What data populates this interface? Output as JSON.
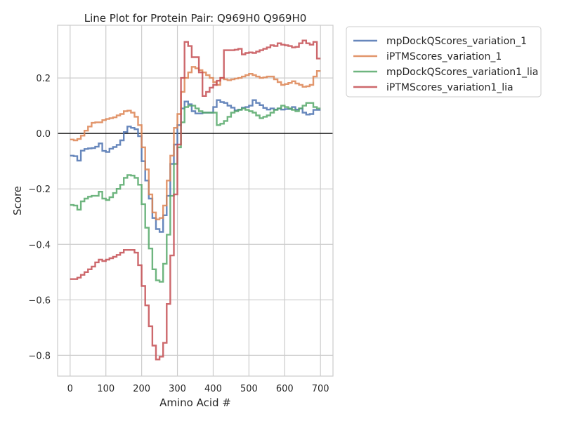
{
  "chart_data": {
    "type": "line",
    "title": "Line Plot for Protein Pair: Q969H0 Q969H0",
    "xlabel": "Amino Acid #",
    "ylabel": "Score",
    "xlim": [
      -35,
      735
    ],
    "ylim": [
      -0.875,
      0.39
    ],
    "xticks": [
      0,
      100,
      200,
      300,
      400,
      500,
      600,
      700
    ],
    "yticks": [
      -0.8,
      -0.6,
      -0.4,
      -0.2,
      0.0,
      0.2
    ],
    "xtick_labels": [
      "0",
      "100",
      "200",
      "300",
      "400",
      "500",
      "600",
      "700"
    ],
    "ytick_labels": [
      "−0.8",
      "−0.6",
      "−0.4",
      "−0.2",
      "0.0",
      "0.2"
    ],
    "grid": true,
    "zero_line": true,
    "legend_placement": "outside right, top",
    "series": [
      {
        "name": "mpDockQScores_variation_1",
        "color": "#4c72b0",
        "points": [
          [
            0,
            -0.08
          ],
          [
            10,
            -0.082
          ],
          [
            20,
            -0.098
          ],
          [
            30,
            -0.062
          ],
          [
            40,
            -0.056
          ],
          [
            50,
            -0.054
          ],
          [
            60,
            -0.053
          ],
          [
            70,
            -0.048
          ],
          [
            80,
            -0.036
          ],
          [
            90,
            -0.063
          ],
          [
            100,
            -0.067
          ],
          [
            110,
            -0.055
          ],
          [
            120,
            -0.049
          ],
          [
            130,
            -0.041
          ],
          [
            140,
            -0.025
          ],
          [
            150,
            0.005
          ],
          [
            160,
            0.025
          ],
          [
            170,
            0.02
          ],
          [
            180,
            0.015
          ],
          [
            190,
            -0.01
          ],
          [
            200,
            -0.1
          ],
          [
            210,
            -0.17
          ],
          [
            220,
            -0.235
          ],
          [
            230,
            -0.305
          ],
          [
            240,
            -0.345
          ],
          [
            250,
            -0.355
          ],
          [
            260,
            -0.295
          ],
          [
            270,
            -0.225
          ],
          [
            280,
            -0.11
          ],
          [
            290,
            -0.04
          ],
          [
            300,
            0.03
          ],
          [
            310,
            0.09
          ],
          [
            320,
            0.115
          ],
          [
            330,
            0.105
          ],
          [
            340,
            0.08
          ],
          [
            350,
            0.072
          ],
          [
            360,
            0.072
          ],
          [
            370,
            0.075
          ],
          [
            380,
            0.075
          ],
          [
            390,
            0.075
          ],
          [
            400,
            0.095
          ],
          [
            410,
            0.12
          ],
          [
            420,
            0.113
          ],
          [
            430,
            0.11
          ],
          [
            440,
            0.1
          ],
          [
            450,
            0.093
          ],
          [
            460,
            0.083
          ],
          [
            470,
            0.086
          ],
          [
            480,
            0.093
          ],
          [
            490,
            0.095
          ],
          [
            500,
            0.1
          ],
          [
            510,
            0.12
          ],
          [
            520,
            0.11
          ],
          [
            530,
            0.102
          ],
          [
            540,
            0.092
          ],
          [
            550,
            0.086
          ],
          [
            560,
            0.09
          ],
          [
            570,
            0.086
          ],
          [
            580,
            0.09
          ],
          [
            590,
            0.086
          ],
          [
            600,
            0.088
          ],
          [
            610,
            0.088
          ],
          [
            620,
            0.095
          ],
          [
            630,
            0.086
          ],
          [
            640,
            0.09
          ],
          [
            650,
            0.075
          ],
          [
            660,
            0.068
          ],
          [
            670,
            0.07
          ],
          [
            680,
            0.085
          ],
          [
            690,
            0.085
          ]
        ]
      },
      {
        "name": "iPTMScores_variation_1",
        "color": "#dd8452",
        "points": [
          [
            0,
            -0.022
          ],
          [
            10,
            -0.025
          ],
          [
            20,
            -0.02
          ],
          [
            30,
            -0.008
          ],
          [
            40,
            0.01
          ],
          [
            50,
            0.025
          ],
          [
            60,
            0.038
          ],
          [
            70,
            0.04
          ],
          [
            80,
            0.04
          ],
          [
            90,
            0.048
          ],
          [
            100,
            0.052
          ],
          [
            110,
            0.055
          ],
          [
            120,
            0.058
          ],
          [
            130,
            0.065
          ],
          [
            140,
            0.07
          ],
          [
            150,
            0.08
          ],
          [
            160,
            0.082
          ],
          [
            170,
            0.075
          ],
          [
            180,
            0.06
          ],
          [
            190,
            0.03
          ],
          [
            200,
            -0.05
          ],
          [
            210,
            -0.13
          ],
          [
            220,
            -0.22
          ],
          [
            230,
            -0.285
          ],
          [
            240,
            -0.31
          ],
          [
            250,
            -0.305
          ],
          [
            260,
            -0.26
          ],
          [
            270,
            -0.17
          ],
          [
            280,
            -0.08
          ],
          [
            290,
            0.02
          ],
          [
            300,
            0.07
          ],
          [
            310,
            0.15
          ],
          [
            320,
            0.2
          ],
          [
            330,
            0.22
          ],
          [
            340,
            0.24
          ],
          [
            350,
            0.235
          ],
          [
            360,
            0.228
          ],
          [
            370,
            0.22
          ],
          [
            380,
            0.21
          ],
          [
            390,
            0.2
          ],
          [
            400,
            0.185
          ],
          [
            410,
            0.175
          ],
          [
            420,
            0.2
          ],
          [
            430,
            0.195
          ],
          [
            440,
            0.192
          ],
          [
            450,
            0.195
          ],
          [
            460,
            0.198
          ],
          [
            470,
            0.2
          ],
          [
            480,
            0.205
          ],
          [
            490,
            0.21
          ],
          [
            500,
            0.215
          ],
          [
            510,
            0.21
          ],
          [
            520,
            0.205
          ],
          [
            530,
            0.2
          ],
          [
            540,
            0.202
          ],
          [
            550,
            0.205
          ],
          [
            560,
            0.205
          ],
          [
            570,
            0.195
          ],
          [
            580,
            0.185
          ],
          [
            590,
            0.175
          ],
          [
            600,
            0.178
          ],
          [
            610,
            0.182
          ],
          [
            620,
            0.188
          ],
          [
            630,
            0.18
          ],
          [
            640,
            0.175
          ],
          [
            650,
            0.168
          ],
          [
            660,
            0.17
          ],
          [
            670,
            0.175
          ],
          [
            680,
            0.205
          ],
          [
            690,
            0.225
          ]
        ]
      },
      {
        "name": "mpDockQScores_variation1_lia",
        "color": "#55a868",
        "points": [
          [
            0,
            -0.258
          ],
          [
            10,
            -0.26
          ],
          [
            20,
            -0.275
          ],
          [
            30,
            -0.245
          ],
          [
            40,
            -0.235
          ],
          [
            50,
            -0.228
          ],
          [
            60,
            -0.225
          ],
          [
            70,
            -0.225
          ],
          [
            80,
            -0.21
          ],
          [
            90,
            -0.235
          ],
          [
            100,
            -0.24
          ],
          [
            110,
            -0.23
          ],
          [
            120,
            -0.215
          ],
          [
            130,
            -0.2
          ],
          [
            140,
            -0.185
          ],
          [
            150,
            -0.16
          ],
          [
            160,
            -0.15
          ],
          [
            170,
            -0.152
          ],
          [
            180,
            -0.16
          ],
          [
            190,
            -0.185
          ],
          [
            200,
            -0.255
          ],
          [
            210,
            -0.34
          ],
          [
            220,
            -0.415
          ],
          [
            230,
            -0.49
          ],
          [
            240,
            -0.53
          ],
          [
            250,
            -0.535
          ],
          [
            260,
            -0.47
          ],
          [
            270,
            -0.365
          ],
          [
            280,
            -0.225
          ],
          [
            290,
            -0.11
          ],
          [
            300,
            -0.05
          ],
          [
            310,
            0.04
          ],
          [
            320,
            0.095
          ],
          [
            330,
            0.1
          ],
          [
            340,
            0.1
          ],
          [
            350,
            0.09
          ],
          [
            360,
            0.08
          ],
          [
            370,
            0.075
          ],
          [
            380,
            0.075
          ],
          [
            390,
            0.075
          ],
          [
            400,
            0.075
          ],
          [
            410,
            0.03
          ],
          [
            420,
            0.035
          ],
          [
            430,
            0.045
          ],
          [
            440,
            0.06
          ],
          [
            450,
            0.075
          ],
          [
            460,
            0.08
          ],
          [
            470,
            0.085
          ],
          [
            480,
            0.09
          ],
          [
            490,
            0.085
          ],
          [
            500,
            0.08
          ],
          [
            510,
            0.075
          ],
          [
            520,
            0.065
          ],
          [
            530,
            0.055
          ],
          [
            540,
            0.06
          ],
          [
            550,
            0.065
          ],
          [
            560,
            0.075
          ],
          [
            570,
            0.085
          ],
          [
            580,
            0.09
          ],
          [
            590,
            0.1
          ],
          [
            600,
            0.095
          ],
          [
            610,
            0.09
          ],
          [
            620,
            0.085
          ],
          [
            630,
            0.08
          ],
          [
            640,
            0.09
          ],
          [
            650,
            0.1
          ],
          [
            660,
            0.11
          ],
          [
            670,
            0.11
          ],
          [
            680,
            0.095
          ],
          [
            690,
            0.09
          ]
        ]
      },
      {
        "name": "iPTMScores_variation1_lia",
        "color": "#c44e52",
        "points": [
          [
            0,
            -0.525
          ],
          [
            10,
            -0.525
          ],
          [
            20,
            -0.52
          ],
          [
            30,
            -0.51
          ],
          [
            40,
            -0.5
          ],
          [
            50,
            -0.49
          ],
          [
            60,
            -0.48
          ],
          [
            70,
            -0.465
          ],
          [
            80,
            -0.455
          ],
          [
            90,
            -0.46
          ],
          [
            100,
            -0.455
          ],
          [
            110,
            -0.45
          ],
          [
            120,
            -0.445
          ],
          [
            130,
            -0.438
          ],
          [
            140,
            -0.43
          ],
          [
            150,
            -0.42
          ],
          [
            160,
            -0.42
          ],
          [
            170,
            -0.42
          ],
          [
            180,
            -0.43
          ],
          [
            190,
            -0.475
          ],
          [
            200,
            -0.55
          ],
          [
            210,
            -0.62
          ],
          [
            220,
            -0.695
          ],
          [
            230,
            -0.765
          ],
          [
            240,
            -0.815
          ],
          [
            250,
            -0.805
          ],
          [
            260,
            -0.755
          ],
          [
            270,
            -0.615
          ],
          [
            280,
            -0.44
          ],
          [
            290,
            -0.22
          ],
          [
            300,
            -0.04
          ],
          [
            310,
            0.2
          ],
          [
            320,
            0.33
          ],
          [
            330,
            0.315
          ],
          [
            340,
            0.275
          ],
          [
            350,
            0.275
          ],
          [
            360,
            0.22
          ],
          [
            370,
            0.135
          ],
          [
            380,
            0.15
          ],
          [
            390,
            0.165
          ],
          [
            400,
            0.175
          ],
          [
            410,
            0.19
          ],
          [
            420,
            0.2
          ],
          [
            430,
            0.3
          ],
          [
            440,
            0.3
          ],
          [
            450,
            0.3
          ],
          [
            460,
            0.302
          ],
          [
            470,
            0.305
          ],
          [
            480,
            0.285
          ],
          [
            490,
            0.29
          ],
          [
            500,
            0.292
          ],
          [
            510,
            0.29
          ],
          [
            520,
            0.295
          ],
          [
            530,
            0.3
          ],
          [
            540,
            0.305
          ],
          [
            550,
            0.31
          ],
          [
            560,
            0.318
          ],
          [
            570,
            0.315
          ],
          [
            580,
            0.325
          ],
          [
            590,
            0.32
          ],
          [
            600,
            0.318
          ],
          [
            610,
            0.315
          ],
          [
            620,
            0.31
          ],
          [
            630,
            0.312
          ],
          [
            640,
            0.325
          ],
          [
            650,
            0.335
          ],
          [
            660,
            0.325
          ],
          [
            670,
            0.32
          ],
          [
            680,
            0.33
          ],
          [
            690,
            0.27
          ]
        ]
      }
    ]
  }
}
